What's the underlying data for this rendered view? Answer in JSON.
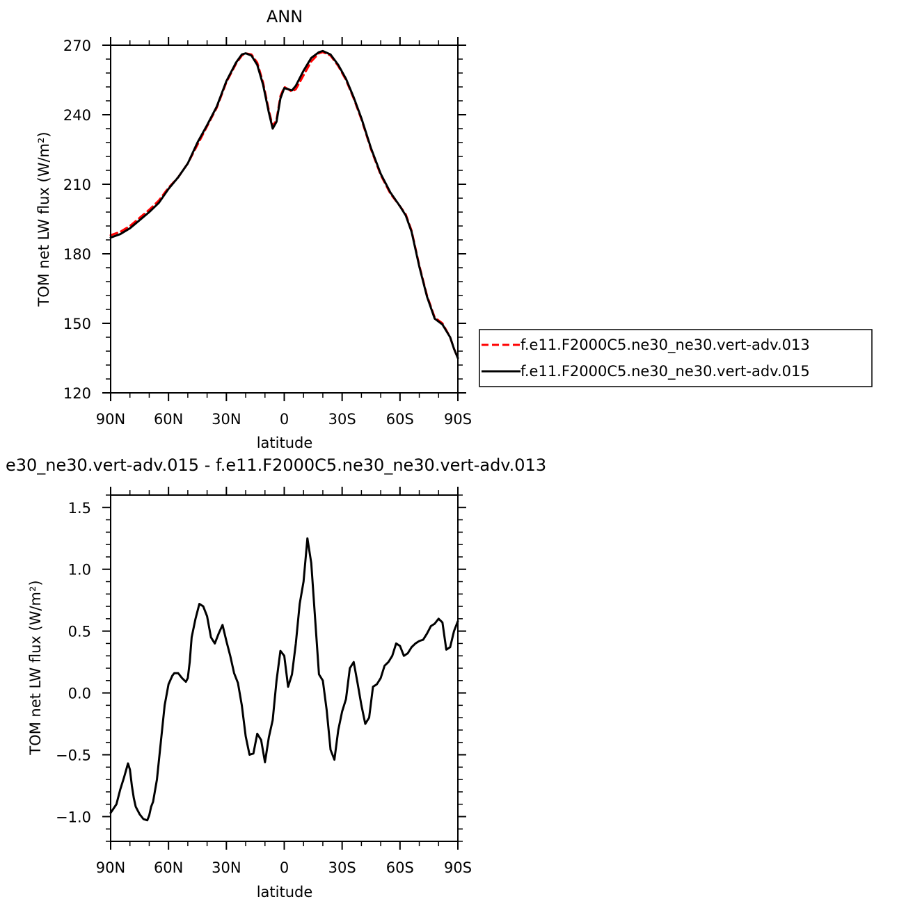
{
  "chart_data": [
    {
      "type": "line",
      "title": "ANN",
      "xlabel": "latitude",
      "ylabel": "TOM net LW flux (W/m²)",
      "x_tick_labels": [
        "90N",
        "60N",
        "30N",
        "0",
        "30S",
        "60S",
        "90S"
      ],
      "x_tick_values": [
        90,
        60,
        30,
        0,
        -30,
        -60,
        -90
      ],
      "xlim": [
        90,
        -90
      ],
      "y_ticks": [
        120,
        150,
        180,
        210,
        240,
        270
      ],
      "y_tick_labels": [
        "120",
        "150",
        "180",
        "210",
        "240",
        "270"
      ],
      "ylim": [
        120,
        270
      ],
      "grid": false,
      "legend_position": "right, outside plot",
      "series": [
        {
          "name": "f.e11.F2000C5.ne30_ne30.vert-adv.013",
          "color": "#ff0000",
          "dash": "dashed",
          "x": [
            90,
            85,
            80,
            75,
            70,
            65,
            60,
            55,
            50,
            45,
            40,
            35,
            30,
            25,
            22,
            20,
            17,
            14,
            11,
            8,
            6,
            4,
            2,
            0,
            -2,
            -4,
            -6,
            -10,
            -14,
            -18,
            -20,
            -24,
            -28,
            -32,
            -36,
            -40,
            -45,
            -50,
            -55,
            -60,
            -63,
            -66,
            -70,
            -74,
            -78,
            -82,
            -86,
            -88,
            -90
          ],
          "y": [
            188,
            189.5,
            192,
            195.5,
            199,
            203,
            208.5,
            213,
            219,
            227,
            235,
            243,
            254,
            262,
            265.5,
            266.5,
            266,
            262.5,
            254,
            242,
            235,
            238,
            248,
            252,
            251,
            250,
            251,
            257,
            263,
            266.5,
            267,
            265.5,
            261,
            255,
            247,
            238,
            225,
            214,
            206,
            200.5,
            197,
            190,
            175,
            162,
            152.5,
            150,
            144,
            139,
            135
          ]
        },
        {
          "name": "f.e11.F2000C5.ne30_ne30.vert-adv.015",
          "color": "#000000",
          "dash": "solid",
          "x": [
            90,
            85,
            80,
            75,
            70,
            65,
            60,
            55,
            50,
            45,
            40,
            35,
            30,
            25,
            22,
            20,
            17,
            14,
            11,
            8,
            6,
            4,
            2,
            0,
            -2,
            -4,
            -6,
            -10,
            -14,
            -18,
            -20,
            -24,
            -28,
            -32,
            -36,
            -40,
            -45,
            -50,
            -55,
            -60,
            -63,
            -66,
            -70,
            -74,
            -78,
            -82,
            -86,
            -88,
            -90
          ],
          "y": [
            187,
            188.5,
            191,
            194.5,
            198,
            202,
            208,
            213,
            219,
            228,
            235.5,
            243.5,
            254.5,
            262.5,
            266,
            266.5,
            265.5,
            261.5,
            253,
            241,
            234,
            237,
            247,
            251.5,
            251,
            250.5,
            252.5,
            259,
            264.5,
            267,
            267.5,
            266,
            261.5,
            255.5,
            247.5,
            238.5,
            225.5,
            214.5,
            206.5,
            200.5,
            196.5,
            189.5,
            174.5,
            161.5,
            152,
            149.5,
            144,
            139,
            135
          ]
        }
      ]
    },
    {
      "type": "line",
      "title": "e30_ne30.vert-adv.015 - f.e11.F2000C5.ne30_ne30.vert-adv.013",
      "xlabel": "latitude",
      "ylabel": "TOM net LW flux (W/m²)",
      "x_tick_labels": [
        "90N",
        "60N",
        "30N",
        "0",
        "30S",
        "60S",
        "90S"
      ],
      "x_tick_values": [
        90,
        60,
        30,
        0,
        -30,
        -60,
        -90
      ],
      "xlim": [
        90,
        -90
      ],
      "y_ticks": [
        -1.0,
        -0.5,
        0.0,
        0.5,
        1.0,
        1.5
      ],
      "y_tick_labels": [
        "−1.0",
        "−0.5",
        "0.0",
        "0.5",
        "1.0",
        "1.5"
      ],
      "ylim": [
        -1.2,
        1.6
      ],
      "grid": false,
      "series": [
        {
          "color": "#000000",
          "dash": "solid",
          "x": [
            90,
            87,
            85,
            83,
            81,
            80,
            79,
            78,
            77,
            75,
            73,
            71,
            70,
            69,
            68,
            66,
            64,
            62,
            60,
            58,
            57,
            55,
            53,
            51,
            50,
            49,
            48,
            46,
            44,
            42,
            40,
            38,
            36,
            34,
            32,
            30,
            28,
            26,
            24,
            22,
            20,
            18,
            16,
            14,
            12,
            10,
            8,
            6,
            4,
            2,
            0,
            -2,
            -4,
            -6,
            -8,
            -10,
            -12,
            -14,
            -16,
            -18,
            -20,
            -22,
            -24,
            -26,
            -28,
            -30,
            -32,
            -34,
            -36,
            -38,
            -40,
            -42,
            -44,
            -46,
            -48,
            -50,
            -52,
            -54,
            -56,
            -58,
            -60,
            -62,
            -64,
            -66,
            -68,
            -70,
            -72,
            -74,
            -76,
            -78,
            -80,
            -82,
            -84,
            -86,
            -88,
            -90
          ],
          "y": [
            -0.97,
            -0.9,
            -0.78,
            -0.68,
            -0.57,
            -0.62,
            -0.75,
            -0.85,
            -0.92,
            -0.98,
            -1.02,
            -1.03,
            -0.99,
            -0.92,
            -0.88,
            -0.7,
            -0.4,
            -0.1,
            0.07,
            0.14,
            0.16,
            0.16,
            0.12,
            0.09,
            0.12,
            0.25,
            0.45,
            0.6,
            0.72,
            0.7,
            0.62,
            0.45,
            0.4,
            0.48,
            0.55,
            0.42,
            0.3,
            0.16,
            0.08,
            -0.1,
            -0.35,
            -0.5,
            -0.49,
            -0.33,
            -0.38,
            -0.56,
            -0.36,
            -0.22,
            0.1,
            0.34,
            0.3,
            0.05,
            0.15,
            0.4,
            0.72,
            0.9,
            1.25,
            1.05,
            0.6,
            0.15,
            0.1,
            -0.14,
            -0.46,
            -0.54,
            -0.3,
            -0.15,
            -0.05,
            0.2,
            0.25,
            0.08,
            -0.1,
            -0.25,
            -0.2,
            0.05,
            0.07,
            0.12,
            0.22,
            0.25,
            0.3,
            0.4,
            0.38,
            0.3,
            0.32,
            0.37,
            0.4,
            0.42,
            0.43,
            0.48,
            0.54,
            0.56,
            0.6,
            0.57,
            0.35,
            0.37,
            0.5,
            0.58
          ]
        }
      ]
    }
  ],
  "legend_entries": [
    "f.e11.F2000C5.ne30_ne30.vert-adv.013",
    "f.e11.F2000C5.ne30_ne30.vert-adv.015"
  ]
}
